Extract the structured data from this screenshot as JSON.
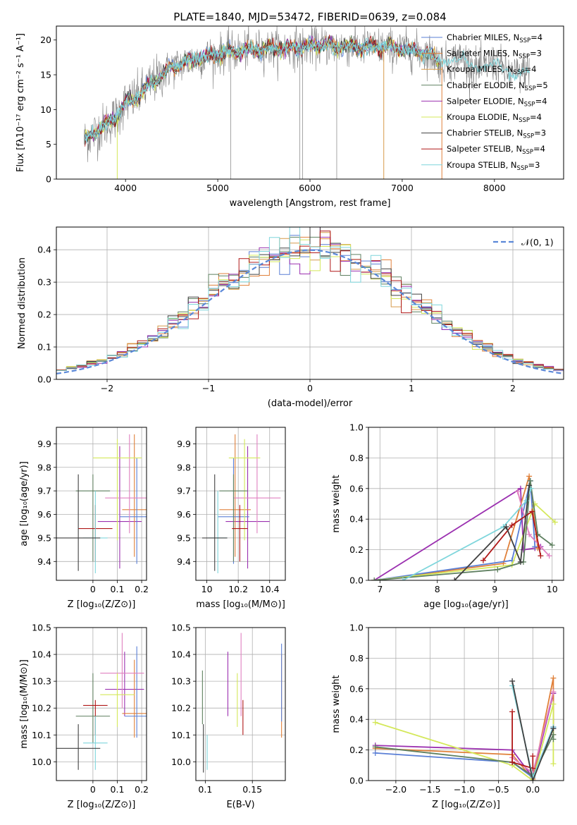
{
  "figure_title": "PLATE=1840, MJD=53472, FIBERID=0639, z=0.084",
  "colors": {
    "Chabrier MILES": "#5a7fd6",
    "Salpeter MILES": "#e0803a",
    "Kroupa MILES": "#d69a4a",
    "Chabrier ELODIE": "#5f8060",
    "Salpeter ELODIE": "#9b30b0",
    "Kroupa ELODIE": "#d4e85a",
    "Chabrier STELIB": "#404040",
    "Salpeter STELIB": "#b01818",
    "Kroupa STELIB": "#7fd6dc",
    "Chabrier MILES pink": "#e080c0"
  },
  "chart_data": [
    {
      "id": "spectrum",
      "type": "line",
      "xlabel": "wavelength [Angstrom, rest frame]",
      "ylabel": "Flux [fλ10⁻¹⁷ erg cm⁻² s⁻¹ A⁻¹]",
      "xlim": [
        3250,
        8750
      ],
      "ylim": [
        0,
        22
      ],
      "xticks": [
        4000,
        5000,
        6000,
        7000,
        8000
      ],
      "yticks": [
        0,
        5,
        10,
        15,
        20
      ],
      "legend_placement": "right",
      "legend": [
        {
          "label": "Chabrier MILES, N",
          "sub": "SSP",
          "suffix": "=4",
          "color": "#5a7fd6"
        },
        {
          "label": "Salpeter MILES, N",
          "sub": "SSP",
          "suffix": "=3",
          "color": "#e0803a"
        },
        {
          "label": "Kroupa MILES, N",
          "sub": "SSP",
          "suffix": "=4",
          "color": "#d69a4a"
        },
        {
          "label": "Chabrier ELODIE, N",
          "sub": "SSP",
          "suffix": "=5",
          "color": "#5f8060"
        },
        {
          "label": "Salpeter ELODIE, N",
          "sub": "SSP",
          "suffix": "=4",
          "color": "#9b30b0"
        },
        {
          "label": "Kroupa ELODIE, N",
          "sub": "SSP",
          "suffix": "=4",
          "color": "#d4e85a"
        },
        {
          "label": "Chabrier STELIB, N",
          "sub": "SSP",
          "suffix": "=3",
          "color": "#404040"
        },
        {
          "label": "Salpeter STELIB, N",
          "sub": "SSP",
          "suffix": "=4",
          "color": "#b01818"
        },
        {
          "label": "Kroupa STELIB, N",
          "sub": "SSP",
          "suffix": "=3",
          "color": "#7fd6dc"
        }
      ],
      "data_profile": {
        "x": [
          3550,
          3700,
          3900,
          4000,
          4100,
          4300,
          4500,
          4700,
          5000,
          5300,
          5600,
          5900,
          6200,
          6500,
          6800,
          7100,
          7300,
          7400
        ],
        "y": [
          5.5,
          7,
          9,
          11,
          11.5,
          14,
          16,
          17,
          18,
          18.5,
          18.8,
          19,
          19.2,
          19,
          19,
          18.5,
          18,
          17
        ]
      }
    },
    {
      "id": "residuals",
      "type": "bar",
      "xlabel": "(data-model)/error",
      "ylabel": "Normed distribution",
      "xlim": [
        -2.5,
        2.5
      ],
      "ylim": [
        0,
        0.47
      ],
      "xticks": [
        -2,
        -1,
        0,
        1,
        2
      ],
      "xtick_labels": [
        "−2",
        "−1",
        "0",
        "1",
        "2"
      ],
      "yticks": [
        0.0,
        0.1,
        0.2,
        0.3,
        0.4
      ],
      "ytick_labels": [
        "0.0",
        "0.1",
        "0.2",
        "0.3",
        "0.4"
      ],
      "legend": [
        {
          "label": "𝒩(0, 1)",
          "color": "#5b88d8",
          "style": "dashed"
        }
      ],
      "bin_width": 0.1,
      "bin_start": -2.5
    },
    {
      "id": "age-vs-Z",
      "type": "scatter",
      "xlabel": "Z [log₁₀(Z/Z⊙)]",
      "ylabel": "age [log₁₀(age/yr)]",
      "xlim": [
        -0.15,
        0.22
      ],
      "ylim": [
        9.32,
        9.97
      ],
      "xticks": [
        0.0,
        0.1,
        0.2
      ],
      "yticks": [
        9.4,
        9.5,
        9.6,
        9.7,
        9.8,
        9.9
      ],
      "points": [
        {
          "x": 0.11,
          "y": 9.57,
          "xerr": 0.09,
          "yerr": [
            0.2,
            0.32
          ],
          "color": "#9b30b0"
        },
        {
          "x": 0.17,
          "y": 9.62,
          "xerr": 0.05,
          "yerr": [
            0.2,
            0.32
          ],
          "color": "#e0803a"
        },
        {
          "x": 0.18,
          "y": 9.59,
          "xerr": 0.07,
          "yerr": [
            0.2,
            0.25
          ],
          "color": "#5a7fd6"
        },
        {
          "x": 0.15,
          "y": 9.67,
          "xerr": 0.1,
          "yerr": [
            0.15,
            0.27
          ],
          "color": "#e080c0"
        },
        {
          "x": 0.1,
          "y": 9.84,
          "xerr": 0.1,
          "yerr": [
            0.35,
            0.08
          ],
          "color": "#d4e85a"
        },
        {
          "x": 0.0,
          "y": 9.7,
          "xerr": 0.07,
          "yerr": [
            0.3,
            0.07
          ],
          "color": "#5f8060"
        },
        {
          "x": 0.01,
          "y": 9.54,
          "xerr": 0.07,
          "yerr": [
            0.14,
            0.1
          ],
          "color": "#b01818"
        },
        {
          "x": 0.01,
          "y": 9.5,
          "xerr": 0.05,
          "yerr": [
            0.15,
            0.2
          ],
          "color": "#7fd6dc"
        },
        {
          "x": -0.06,
          "y": 9.5,
          "xerr": 0.09,
          "yerr": [
            0.14,
            0.27
          ],
          "color": "#404040"
        }
      ]
    },
    {
      "id": "age-vs-mass",
      "type": "scatter",
      "xlabel": "mass [log₁₀(M/M⊙)]",
      "ylabel": "",
      "xlim": [
        9.93,
        10.5
      ],
      "ylim": [
        9.32,
        9.97
      ],
      "xticks": [
        10.0,
        10.2,
        10.4
      ],
      "yticks": [
        9.4,
        9.5,
        9.6,
        9.7,
        9.8,
        9.9
      ],
      "points": [
        {
          "x": 10.26,
          "y": 9.57,
          "xerr": 0.14,
          "yerr": [
            0.2,
            0.32
          ],
          "color": "#9b30b0"
        },
        {
          "x": 10.18,
          "y": 9.62,
          "xerr": 0.1,
          "yerr": [
            0.2,
            0.32
          ],
          "color": "#e0803a"
        },
        {
          "x": 10.17,
          "y": 9.59,
          "xerr": 0.1,
          "yerr": [
            0.2,
            0.25
          ],
          "color": "#5a7fd6"
        },
        {
          "x": 10.32,
          "y": 9.67,
          "xerr": 0.15,
          "yerr": [
            0.15,
            0.27
          ],
          "color": "#e080c0"
        },
        {
          "x": 10.24,
          "y": 9.84,
          "xerr": 0.1,
          "yerr": [
            0.35,
            0.08
          ],
          "color": "#d4e85a"
        },
        {
          "x": 10.17,
          "y": 9.7,
          "xerr": 0.09,
          "yerr": [
            0.3,
            0.07
          ],
          "color": "#5f8060"
        },
        {
          "x": 10.21,
          "y": 9.54,
          "xerr": 0.05,
          "yerr": [
            0.14,
            0.1
          ],
          "color": "#b01818"
        },
        {
          "x": 10.07,
          "y": 9.5,
          "xerr": 0.06,
          "yerr": [
            0.15,
            0.2
          ],
          "color": "#7fd6dc"
        },
        {
          "x": 10.05,
          "y": 9.5,
          "xerr": 0.08,
          "yerr": [
            0.14,
            0.27
          ],
          "color": "#404040"
        }
      ]
    },
    {
      "id": "massweight-vs-age",
      "type": "line",
      "xlabel": "age [log₁₀(age/yr)]",
      "ylabel": "mass weight",
      "xlim": [
        6.8,
        10.2
      ],
      "ylim": [
        0,
        1
      ],
      "xticks": [
        7,
        8,
        9,
        10
      ],
      "yticks": [
        0.0,
        0.2,
        0.4,
        0.6,
        0.8,
        1.0
      ],
      "series": [
        {
          "color": "#9b30b0",
          "x": [
            6.9,
            9.45,
            9.5,
            9.7,
            9.8
          ],
          "y": [
            0.0,
            0.6,
            0.2,
            0.21,
            0.22
          ]
        },
        {
          "color": "#e0803a",
          "x": [
            6.9,
            9.15,
            9.6,
            9.75
          ],
          "y": [
            0.0,
            0.11,
            0.68,
            0.21
          ]
        },
        {
          "color": "#5a7fd6",
          "x": [
            6.9,
            9.3,
            9.62,
            9.7
          ],
          "y": [
            0.0,
            0.13,
            0.65,
            0.22
          ]
        },
        {
          "color": "#e080c0",
          "x": [
            9.4,
            9.6,
            9.95
          ],
          "y": [
            0.58,
            0.3,
            0.16
          ]
        },
        {
          "color": "#d4e85a",
          "x": [
            6.9,
            9.3,
            9.7,
            10.05
          ],
          "y": [
            0.0,
            0.1,
            0.5,
            0.38
          ]
        },
        {
          "color": "#5f8060",
          "x": [
            6.9,
            9.05,
            9.5,
            9.62,
            9.75,
            10.0
          ],
          "y": [
            0.0,
            0.07,
            0.12,
            0.65,
            0.3,
            0.23
          ]
        },
        {
          "color": "#b01818",
          "x": [
            8.8,
            9.3,
            9.65,
            9.8
          ],
          "y": [
            0.13,
            0.36,
            0.45,
            0.16
          ]
        },
        {
          "color": "#7fd6dc",
          "x": [
            7.4,
            9.15,
            9.55,
            9.63
          ],
          "y": [
            0.0,
            0.35,
            0.52,
            0.6
          ]
        },
        {
          "color": "#404040",
          "x": [
            8.3,
            9.2,
            9.45,
            9.6
          ],
          "y": [
            0.0,
            0.35,
            0.12,
            0.62
          ]
        }
      ]
    },
    {
      "id": "mass-vs-Z",
      "type": "scatter",
      "xlabel": "Z [log₁₀(Z/Z⊙)]",
      "ylabel": "mass [log₁₀(M/M⊙)]",
      "xlim": [
        -0.15,
        0.22
      ],
      "ylim": [
        9.93,
        10.5
      ],
      "xticks": [
        0.0,
        0.1,
        0.2
      ],
      "yticks": [
        10.0,
        10.1,
        10.2,
        10.3,
        10.4,
        10.5
      ],
      "points": [
        {
          "x": 0.13,
          "y": 10.27,
          "xerr": 0.08,
          "yerr": [
            0.1,
            0.14
          ],
          "color": "#9b30b0"
        },
        {
          "x": 0.17,
          "y": 10.18,
          "xerr": 0.05,
          "yerr": [
            0.09,
            0.2
          ],
          "color": "#e0803a"
        },
        {
          "x": 0.18,
          "y": 10.17,
          "xerr": 0.05,
          "yerr": [
            0.08,
            0.26
          ],
          "color": "#5a7fd6"
        },
        {
          "x": 0.12,
          "y": 10.33,
          "xerr": 0.09,
          "yerr": [
            0.13,
            0.15
          ],
          "color": "#e080c0"
        },
        {
          "x": 0.1,
          "y": 10.25,
          "xerr": 0.07,
          "yerr": [
            0.12,
            0.08
          ],
          "color": "#d4e85a"
        },
        {
          "x": 0.0,
          "y": 10.17,
          "xerr": 0.07,
          "yerr": [
            0.1,
            0.16
          ],
          "color": "#5f8060"
        },
        {
          "x": 0.01,
          "y": 10.21,
          "xerr": 0.05,
          "yerr": [
            0.11,
            0.02
          ],
          "color": "#b01818"
        },
        {
          "x": 0.01,
          "y": 10.07,
          "xerr": 0.05,
          "yerr": [
            0.1,
            0.1
          ],
          "color": "#7fd6dc"
        },
        {
          "x": -0.06,
          "y": 10.05,
          "xerr": 0.09,
          "yerr": [
            0.08,
            0.09
          ],
          "color": "#404040"
        }
      ]
    },
    {
      "id": "mass-vs-EBV",
      "type": "scatter",
      "xlabel": "E(B-V)",
      "ylabel": "",
      "xlim": [
        0.09,
        0.185
      ],
      "ylim": [
        9.93,
        10.5
      ],
      "xticks": [
        0.1,
        0.15
      ],
      "yticks": [
        10.0,
        10.1,
        10.2,
        10.3,
        10.4,
        10.5
      ],
      "points": [
        {
          "x": 0.124,
          "y": 10.3,
          "yerr": [
            0.13,
            0.11
          ],
          "color": "#9b30b0"
        },
        {
          "x": 0.181,
          "y": 10.25,
          "yerr": [
            0.16,
            0.15
          ],
          "color": "#e0803a"
        },
        {
          "x": 0.181,
          "y": 10.3,
          "yerr": [
            0.15,
            0.14
          ],
          "color": "#5a7fd6"
        },
        {
          "x": 0.138,
          "y": 10.35,
          "yerr": [
            0.18,
            0.13
          ],
          "color": "#e080c0"
        },
        {
          "x": 0.134,
          "y": 10.22,
          "yerr": [
            0.09,
            0.11
          ],
          "color": "#d4e85a"
        },
        {
          "x": 0.097,
          "y": 10.25,
          "yerr": [
            0.11,
            0.09
          ],
          "color": "#5f8060"
        },
        {
          "x": 0.14,
          "y": 10.17,
          "yerr": [
            0.07,
            0.06
          ],
          "color": "#b01818"
        },
        {
          "x": 0.102,
          "y": 10.05,
          "yerr": [
            0.08,
            0.05
          ],
          "color": "#7fd6dc"
        },
        {
          "x": 0.098,
          "y": 10.05,
          "yerr": [
            0.09,
            0.09
          ],
          "color": "#404040"
        }
      ]
    },
    {
      "id": "massweight-vs-Z",
      "type": "line",
      "xlabel": "Z [log₁₀(Z/Z⊙)]",
      "ylabel": "mass weight",
      "xlim": [
        -2.4,
        0.45
      ],
      "ylim": [
        0,
        1
      ],
      "xticks": [
        -2.0,
        -1.5,
        -1.0,
        -0.5,
        0.0
      ],
      "xtick_labels": [
        "−2.0",
        "−1.5",
        "−1.0",
        "−0.5",
        "0.0"
      ],
      "yticks": [
        0.0,
        0.2,
        0.4,
        0.6,
        0.8,
        1.0
      ],
      "series": [
        {
          "color": "#9b30b0",
          "x": [
            -2.3,
            -0.3,
            0.0,
            0.3,
            0.3
          ],
          "y": [
            0.23,
            0.2,
            0.02,
            0.57,
            0.35
          ]
        },
        {
          "color": "#e0803a",
          "x": [
            -2.3,
            -0.3,
            0.0,
            0.3,
            0.3
          ],
          "y": [
            0.21,
            0.17,
            0.01,
            0.67,
            0.3
          ]
        },
        {
          "color": "#5a7fd6",
          "x": [
            -2.3,
            -0.3,
            0.0,
            0.3,
            0.3
          ],
          "y": [
            0.18,
            0.12,
            0.02,
            0.35,
            0.34
          ]
        },
        {
          "color": "#e080c0",
          "x": [
            -0.3,
            0.0,
            0.3
          ],
          "y": [
            0.15,
            0.05,
            0.58
          ]
        },
        {
          "color": "#d4e85a",
          "x": [
            -2.3,
            -0.3,
            0.0,
            0.3,
            0.3
          ],
          "y": [
            0.38,
            0.1,
            0.0,
            0.5,
            0.11
          ]
        },
        {
          "color": "#5f8060",
          "x": [
            -2.3,
            -0.3,
            0.0,
            0.3,
            0.3
          ],
          "y": [
            0.22,
            0.12,
            0.03,
            0.3,
            0.27
          ]
        },
        {
          "color": "#b01818",
          "x": [
            -0.3,
            -0.3,
            0.0,
            0.0
          ],
          "y": [
            0.45,
            0.12,
            0.08,
            0.16
          ]
        },
        {
          "color": "#7fd6dc",
          "x": [
            -0.3,
            0.0,
            0.3
          ],
          "y": [
            0.62,
            0.02,
            0.35
          ]
        },
        {
          "color": "#404040",
          "x": [
            -0.3,
            0.0,
            0.3
          ],
          "y": [
            0.65,
            0.0,
            0.34
          ]
        }
      ]
    }
  ]
}
